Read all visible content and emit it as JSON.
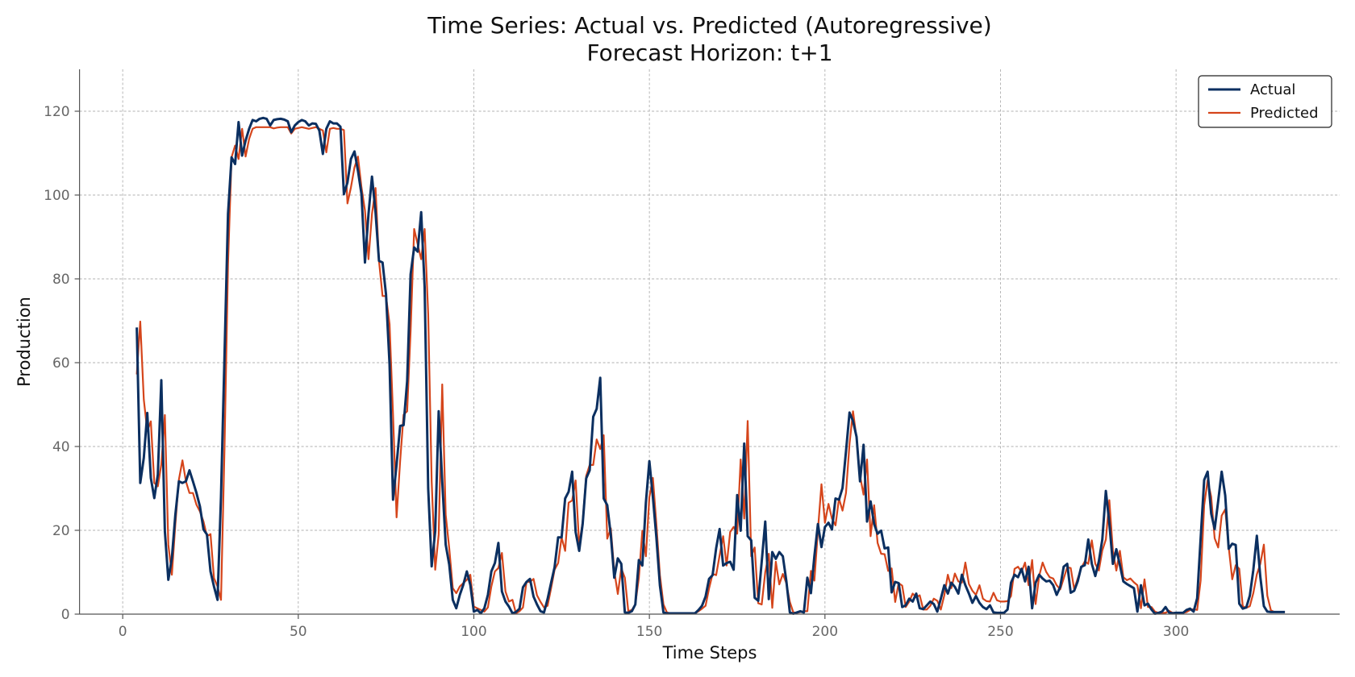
{
  "chart_data": {
    "type": "line",
    "title": "Time Series: Actual vs. Predicted (Autoregressive)",
    "subtitle": "Forecast Horizon: t+1",
    "xlabel": "Time Steps",
    "ylabel": "Production",
    "xlim": [
      -12.3,
      346.6
    ],
    "ylim": [
      0,
      130
    ],
    "xticks": [
      0,
      50,
      100,
      150,
      200,
      250,
      300
    ],
    "yticks": [
      0,
      20,
      40,
      60,
      80,
      100,
      120
    ],
    "grid": true,
    "legend_position": "top-right",
    "x": [
      4,
      5,
      6,
      7,
      8,
      9,
      10,
      11,
      12,
      13,
      14,
      15,
      16,
      17,
      18,
      19,
      20,
      21,
      22,
      23,
      24,
      25,
      26,
      27,
      28,
      29,
      30,
      31,
      32,
      33,
      34,
      35,
      36,
      37,
      38,
      39,
      40,
      41,
      42,
      43,
      44,
      45,
      46,
      47,
      48,
      49,
      50,
      51,
      52,
      53,
      54,
      55,
      56,
      57,
      58,
      59,
      60,
      61,
      62,
      63,
      64,
      65,
      66,
      67,
      68,
      69,
      70,
      71,
      72,
      73,
      74,
      75,
      76,
      77,
      78,
      79,
      80,
      81,
      82,
      83,
      84,
      85,
      86,
      87,
      88,
      89,
      90,
      91,
      92,
      93,
      94,
      95,
      96,
      97,
      98,
      99,
      100,
      101,
      102,
      103,
      104,
      105,
      106,
      107,
      108,
      109,
      110,
      111,
      112,
      113,
      114,
      115,
      116,
      117,
      118,
      119,
      120,
      121,
      122,
      123,
      124,
      125,
      126,
      127,
      128,
      129,
      130,
      131,
      132,
      133,
      134,
      135,
      136,
      137,
      138,
      139,
      140,
      141,
      142,
      143,
      144,
      145,
      146,
      147,
      148,
      149,
      150,
      151,
      152,
      153,
      154,
      155,
      156,
      157,
      158,
      159,
      160,
      161,
      162,
      163,
      164,
      165,
      166,
      167,
      168,
      169,
      170,
      171,
      172,
      173,
      174,
      175,
      176,
      177,
      178,
      179,
      180,
      181,
      182,
      183,
      184,
      185,
      186,
      187,
      188,
      189,
      190,
      191,
      192,
      193,
      194,
      195,
      196,
      197,
      198,
      199,
      200,
      201,
      202,
      203,
      204,
      205,
      206,
      207,
      208,
      209,
      210,
      211,
      212,
      213,
      214,
      215,
      216,
      217,
      218,
      219,
      220,
      221,
      222,
      223,
      224,
      225,
      226,
      227,
      228,
      229,
      230,
      231,
      232,
      233,
      234,
      235,
      236,
      237,
      238,
      239,
      240,
      241,
      242,
      243,
      244,
      245,
      246,
      247,
      248,
      249,
      250,
      251,
      252,
      253,
      254,
      255,
      256,
      257,
      258,
      259,
      260,
      261,
      262,
      263,
      264,
      265,
      266,
      267,
      268,
      269,
      270,
      271,
      272,
      273,
      274,
      275,
      276,
      277,
      278,
      279,
      280,
      281,
      282,
      283,
      284,
      285,
      286,
      287,
      288,
      289,
      290,
      291,
      292,
      293,
      294,
      295,
      296,
      297,
      298,
      299,
      300,
      301,
      302,
      303,
      304,
      305,
      306,
      307,
      308,
      309,
      310,
      311,
      312,
      313,
      314,
      315,
      316,
      317,
      318,
      319,
      320,
      321,
      322,
      323,
      324,
      325,
      326,
      327,
      328,
      329,
      330,
      331
    ],
    "series": [
      {
        "name": "Actual",
        "color": "#0b2f60",
        "values": [
          68.4,
          31.3,
          37.3,
          48,
          32.5,
          27.7,
          33.3,
          55.8,
          19.8,
          8.2,
          13.4,
          23.7,
          31.7,
          31.3,
          31.7,
          34.3,
          31.7,
          28.9,
          25.7,
          20.2,
          19,
          10.2,
          6.6,
          3.4,
          28,
          62,
          95.5,
          109,
          107.4,
          117.4,
          109.4,
          113,
          115.8,
          117.9,
          117.6,
          118.2,
          118.4,
          118.2,
          116.6,
          117.9,
          118.1,
          118.2,
          118,
          117.6,
          115,
          116.6,
          117.4,
          117.9,
          117.6,
          116.6,
          117.1,
          117,
          115.4,
          109.8,
          115.8,
          117.6,
          117.1,
          117.1,
          116.3,
          100.2,
          103,
          108.6,
          110.4,
          105.8,
          100.2,
          83.9,
          95.5,
          104.4,
          95.9,
          84.3,
          83.9,
          76.3,
          59.6,
          27.3,
          35.7,
          44.9,
          45.1,
          55.6,
          81.1,
          87.5,
          86.5,
          95.9,
          78,
          30,
          11.4,
          19.8,
          48.4,
          31.7,
          16.6,
          11.8,
          3.4,
          1.4,
          4.6,
          7,
          10.2,
          7,
          0.6,
          1,
          0.2,
          1.4,
          4.6,
          10.2,
          12.2,
          17,
          5.4,
          3,
          1.8,
          0.2,
          0.5,
          1.3,
          6.4,
          7.7,
          8.4,
          4.2,
          2.3,
          0.7,
          0.4,
          3.6,
          7.4,
          11.2,
          18.3,
          18.3,
          27.6,
          29.2,
          34,
          19.6,
          15.1,
          21.5,
          32.4,
          34.3,
          47.1,
          49,
          56.4,
          27.6,
          26,
          18.9,
          8.7,
          13.3,
          12,
          0.4,
          0.3,
          0.7,
          2.3,
          12.9,
          11.6,
          26.6,
          36.5,
          27.9,
          18.3,
          6.8,
          0.4,
          0.2,
          0.2,
          0.2,
          0.2,
          0.2,
          0.2,
          0.2,
          0.2,
          0.2,
          1,
          2,
          4.2,
          8.4,
          9.3,
          15.7,
          20.3,
          11.6,
          12.2,
          12.5,
          10.6,
          28.4,
          19.9,
          40.7,
          18.6,
          17.6,
          3.9,
          3.2,
          12.5,
          22.1,
          3.6,
          14.8,
          13.2,
          14.8,
          13.8,
          8,
          0.4,
          0.1,
          0.4,
          0.7,
          0.4,
          8.7,
          5,
          13.8,
          21.5,
          16,
          20.8,
          21.8,
          20.2,
          27.6,
          27.3,
          30.1,
          38.8,
          48.1,
          46.1,
          42.3,
          31.7,
          40.4,
          22.1,
          26.9,
          21.5,
          19.2,
          19.9,
          15.7,
          15.9,
          5.2,
          7.7,
          7.4,
          1.7,
          2.1,
          3.7,
          3,
          4.9,
          1.4,
          1.2,
          2.1,
          3,
          2.4,
          0.6,
          3.7,
          6.9,
          4.9,
          7.5,
          6.5,
          4.9,
          9.4,
          6.9,
          4.9,
          2.7,
          4.3,
          2.7,
          1.7,
          1.2,
          2.1,
          0.4,
          0.3,
          0.3,
          0.3,
          1.1,
          7.5,
          9.4,
          8.8,
          10.8,
          7.8,
          11.3,
          1.4,
          7.5,
          9.4,
          8.5,
          7.8,
          8,
          6.9,
          4.6,
          6.5,
          11.3,
          12,
          5.1,
          5.6,
          7.8,
          11.3,
          11.7,
          17.8,
          12,
          9.1,
          12.6,
          17.8,
          29.4,
          21.7,
          12,
          15.5,
          11.7,
          7.8,
          7.2,
          6.7,
          6.2,
          0.6,
          6.9,
          2.1,
          2.5,
          1.1,
          0.1,
          0.3,
          0.6,
          1.7,
          0.4,
          0.2,
          0.3,
          0.3,
          0.3,
          1,
          1.3,
          0.6,
          3.8,
          18,
          32,
          34,
          24,
          20.3,
          27,
          34,
          28.3,
          15.6,
          16.8,
          16.5,
          2.5,
          1.3,
          1.6,
          4.4,
          10.5,
          18.7,
          8.9,
          1.9,
          0.6,
          0.5,
          0.5,
          0.5,
          0.5,
          0.5
        ]
      },
      {
        "name": "Predicted",
        "color": "#d5451b",
        "values": [
          57.2,
          69.8,
          51.2,
          43.7,
          46,
          31.3,
          30.5,
          35.7,
          47.5,
          16.6,
          9.4,
          21.4,
          32.1,
          36.7,
          31.7,
          28.9,
          28.9,
          26.1,
          24.5,
          22.1,
          18.6,
          19.1,
          8.6,
          6.6,
          3.4,
          40,
          83.5,
          109,
          111.8,
          108.6,
          115.8,
          109.2,
          113.4,
          115.8,
          116.2,
          116.2,
          116.2,
          116.2,
          116.2,
          115.9,
          116.1,
          116.2,
          116.2,
          116.2,
          114.7,
          115.8,
          116,
          116.2,
          116,
          115.8,
          116,
          116.2,
          115.8,
          115.4,
          110.2,
          115.8,
          116,
          115.8,
          115.8,
          115.5,
          98,
          101.8,
          106.6,
          109.2,
          101.8,
          96.3,
          84.7,
          95.5,
          101.7,
          84.3,
          75.9,
          75.9,
          69.2,
          47.6,
          23.1,
          36.5,
          47.6,
          48.4,
          67.6,
          91.9,
          88.3,
          84.7,
          91.9,
          71.6,
          31.7,
          10.6,
          19,
          54.8,
          23.7,
          15.7,
          6.2,
          5,
          6.6,
          7.4,
          8.2,
          9.4,
          1.8,
          1.4,
          1,
          0.6,
          1.6,
          6.6,
          10.2,
          11,
          14.6,
          5.4,
          3,
          3.4,
          0.2,
          0.7,
          1.6,
          7.7,
          7.7,
          8.4,
          4.5,
          2.9,
          1.6,
          2,
          6.1,
          10.6,
          12.2,
          18.3,
          15.1,
          26.6,
          27.1,
          31.9,
          16.4,
          22.1,
          33,
          35.6,
          35.6,
          41.7,
          39.4,
          42.7,
          18,
          20.5,
          10.3,
          4.8,
          10.9,
          8.7,
          0.7,
          1,
          2.3,
          8.7,
          19.9,
          13.8,
          27.9,
          32.5,
          21.5,
          9.3,
          2.3,
          0.4,
          0.2,
          0.2,
          0.2,
          0.2,
          0.2,
          0.2,
          0.2,
          0.2,
          0.7,
          1.3,
          2,
          6.1,
          9.6,
          9.3,
          14,
          18.6,
          11.6,
          19.6,
          20.8,
          19.2,
          36.9,
          22.8,
          46.1,
          13.8,
          15.9,
          2.6,
          2.3,
          10,
          14.4,
          1.5,
          12.5,
          7.1,
          9.6,
          7.4,
          2.9,
          0.4,
          0.3,
          0.5,
          0.7,
          0.7,
          10.3,
          8,
          20,
          31,
          21.8,
          26.3,
          22.8,
          21.2,
          27.6,
          24.7,
          28.9,
          40.7,
          48.4,
          42,
          33,
          28.5,
          36.9,
          18.6,
          26,
          17,
          14.4,
          14.3,
          10.3,
          10.9,
          2.9,
          7.4,
          6.8,
          1.7,
          3,
          4.9,
          4,
          4.5,
          1.1,
          1.1,
          2,
          3.7,
          3.2,
          1.1,
          4.5,
          9.4,
          6.2,
          9.7,
          7.8,
          7.5,
          12.3,
          7.2,
          5.6,
          4.6,
          6.9,
          3.7,
          3.1,
          3,
          5.1,
          3.3,
          3,
          3,
          3.1,
          4.3,
          10.8,
          11.3,
          10.1,
          12.3,
          6.9,
          12.9,
          2.4,
          9.1,
          12.3,
          10.1,
          8.8,
          8.5,
          6.9,
          5.9,
          8.5,
          11.2,
          11,
          5.9,
          8.5,
          11,
          12.6,
          12,
          17.6,
          12,
          10.4,
          15.2,
          17.8,
          27.2,
          15.2,
          10.4,
          15.1,
          8.8,
          8.1,
          8.5,
          7.6,
          6.9,
          1.4,
          8.3,
          1.7,
          1.7,
          0.6,
          0.3,
          0.3,
          0.3,
          0.8,
          0.3,
          0.3,
          0.3,
          0.3,
          0.5,
          1,
          1.2,
          1,
          8,
          26,
          32,
          28,
          18.1,
          15.9,
          23.5,
          25,
          16,
          8.3,
          11.7,
          10.8,
          1.9,
          1.5,
          1.9,
          5,
          9.5,
          12,
          16.6,
          4.4,
          0.9,
          0.5,
          0.5,
          0.5,
          0.5
        ]
      }
    ]
  }
}
